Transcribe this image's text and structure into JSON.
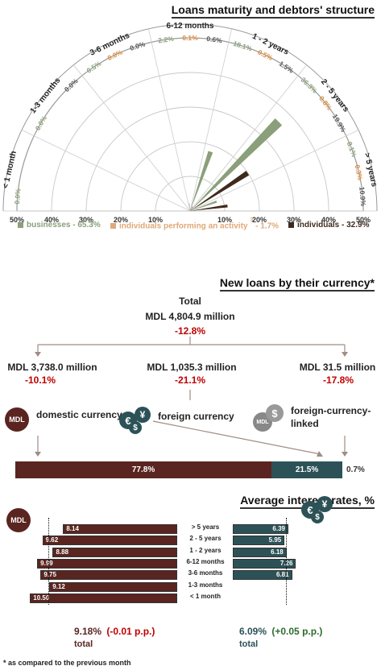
{
  "colors": {
    "businesses": "#8a9f7a",
    "individuals_activity": "#e0a878",
    "individuals": "#3f2a1e",
    "domestic": "#5a2520",
    "foreign": "#2c5257",
    "red": "#c00000",
    "green": "#2e6b2e"
  },
  "section1": {
    "title": "Loans maturity and debtors' structure",
    "categories": [
      "< 1 month",
      "1-3 months",
      "3-6 months",
      "6-12 months",
      "1 - 2 years",
      "2 - 5 years",
      "> 5 years"
    ],
    "axis_ticks_left": [
      "50%",
      "40%",
      "30%",
      "20%",
      "10%"
    ],
    "axis_ticks_right": [
      "10%",
      "20%",
      "30%",
      "40%",
      "50%"
    ],
    "legend": {
      "businesses": "businesses - 65.3%",
      "individuals_activity": "individuals performing an activity",
      "individuals_activity_sup": "3",
      "individuals_activity_share": " - 1.7%",
      "individuals": "individuals - 32.9%"
    }
  },
  "chart_data": [
    {
      "type": "rose",
      "title": "Loans maturity and debtors' structure",
      "categories": [
        "< 1 month",
        "1-3 months",
        "3-6 months",
        "6-12 months",
        "1 - 2 years",
        "2 - 5 years",
        "> 5 years"
      ],
      "series": [
        {
          "name": "businesses",
          "values": [
            0.0,
            0.0,
            0.5,
            2.2,
            18.1,
            36.3,
            8.1
          ]
        },
        {
          "name": "individuals performing an activity",
          "values": [
            0.0,
            0.0,
            0.0,
            0.1,
            0.5,
            0.8,
            0.3
          ]
        },
        {
          "name": "individuals",
          "values": [
            0.0,
            0.0,
            0.0,
            0.6,
            1.5,
            19.9,
            10.9
          ]
        }
      ],
      "value_labels": [
        [
          "0.0%",
          "",
          ""
        ],
        [
          "0.0%",
          "",
          "0.0%"
        ],
        [
          "0.5%",
          "0.0%",
          "0.0%"
        ],
        [
          "2.2%",
          "0.1%",
          "0.6%"
        ],
        [
          "18.1%",
          "0.5%",
          "1.5%"
        ],
        [
          "36.3%",
          "0.8%",
          "19.9%"
        ],
        [
          "8.1%",
          "0.3%",
          "10.9%"
        ]
      ],
      "rlim": [
        0,
        50
      ],
      "legend_position": "bottom"
    },
    {
      "type": "bar",
      "title": "New loans by their currency",
      "categories": [
        "domestic currency",
        "foreign currency",
        "foreign-currency-linked"
      ],
      "values": [
        77.8,
        21.5,
        0.7
      ],
      "stacked": true
    },
    {
      "type": "bar",
      "title": "Average interest rates, %",
      "categories": [
        "> 5 years",
        "2 - 5 years",
        "1 - 2 years",
        "6-12 months",
        "3-6 months",
        "1-3 months",
        "< 1 month"
      ],
      "series": [
        {
          "name": "MDL",
          "values": [
            8.14,
            9.62,
            8.88,
            9.99,
            9.75,
            9.12,
            10.5
          ]
        },
        {
          "name": "foreign currency",
          "values": [
            6.39,
            5.95,
            6.18,
            7.26,
            6.81,
            null,
            null
          ]
        }
      ],
      "totals": [
        9.18,
        6.09
      ]
    }
  ],
  "section2": {
    "title": "New loans by their currency*",
    "total_label": "Total",
    "total_amount": "MDL 4,804.9 million",
    "total_change": "-12.8%",
    "items": [
      {
        "amount": "MDL 3,738.0 million",
        "change": "-10.1%",
        "label": "domestic currency"
      },
      {
        "amount": "MDL 1,035.3 million",
        "change": "-21.1%",
        "label": "foreign currency"
      },
      {
        "amount": "MDL 31.5 million",
        "change": "-17.8%",
        "label": "foreign-currency-\nlinked"
      }
    ],
    "stack_labels": [
      "77.8%",
      "21.5%",
      "0.7%"
    ],
    "icon_mdl": "MDL"
  },
  "section3": {
    "title": "Average interest rates, %",
    "icon_mdl": "MDL",
    "periods": [
      "> 5 years",
      "2 - 5 years",
      "1 - 2 years",
      "6-12 months",
      "3-6 months",
      "1-3 months",
      "< 1 month"
    ],
    "mdl_values": [
      "8.14",
      "9.62",
      "8.88",
      "9.99",
      "9.75",
      "9.12",
      "10.50"
    ],
    "fx_values": [
      "6.39",
      "5.95",
      "6.18",
      "7.26",
      "6.81",
      "",
      ""
    ],
    "mdl_total": "9.18%",
    "mdl_change": "(-0.01 p.p.)",
    "fx_total": "6.09%",
    "fx_change": "(+0.05 p.p.)",
    "total_word": "total"
  },
  "footnote": "* as compared to the previous month"
}
